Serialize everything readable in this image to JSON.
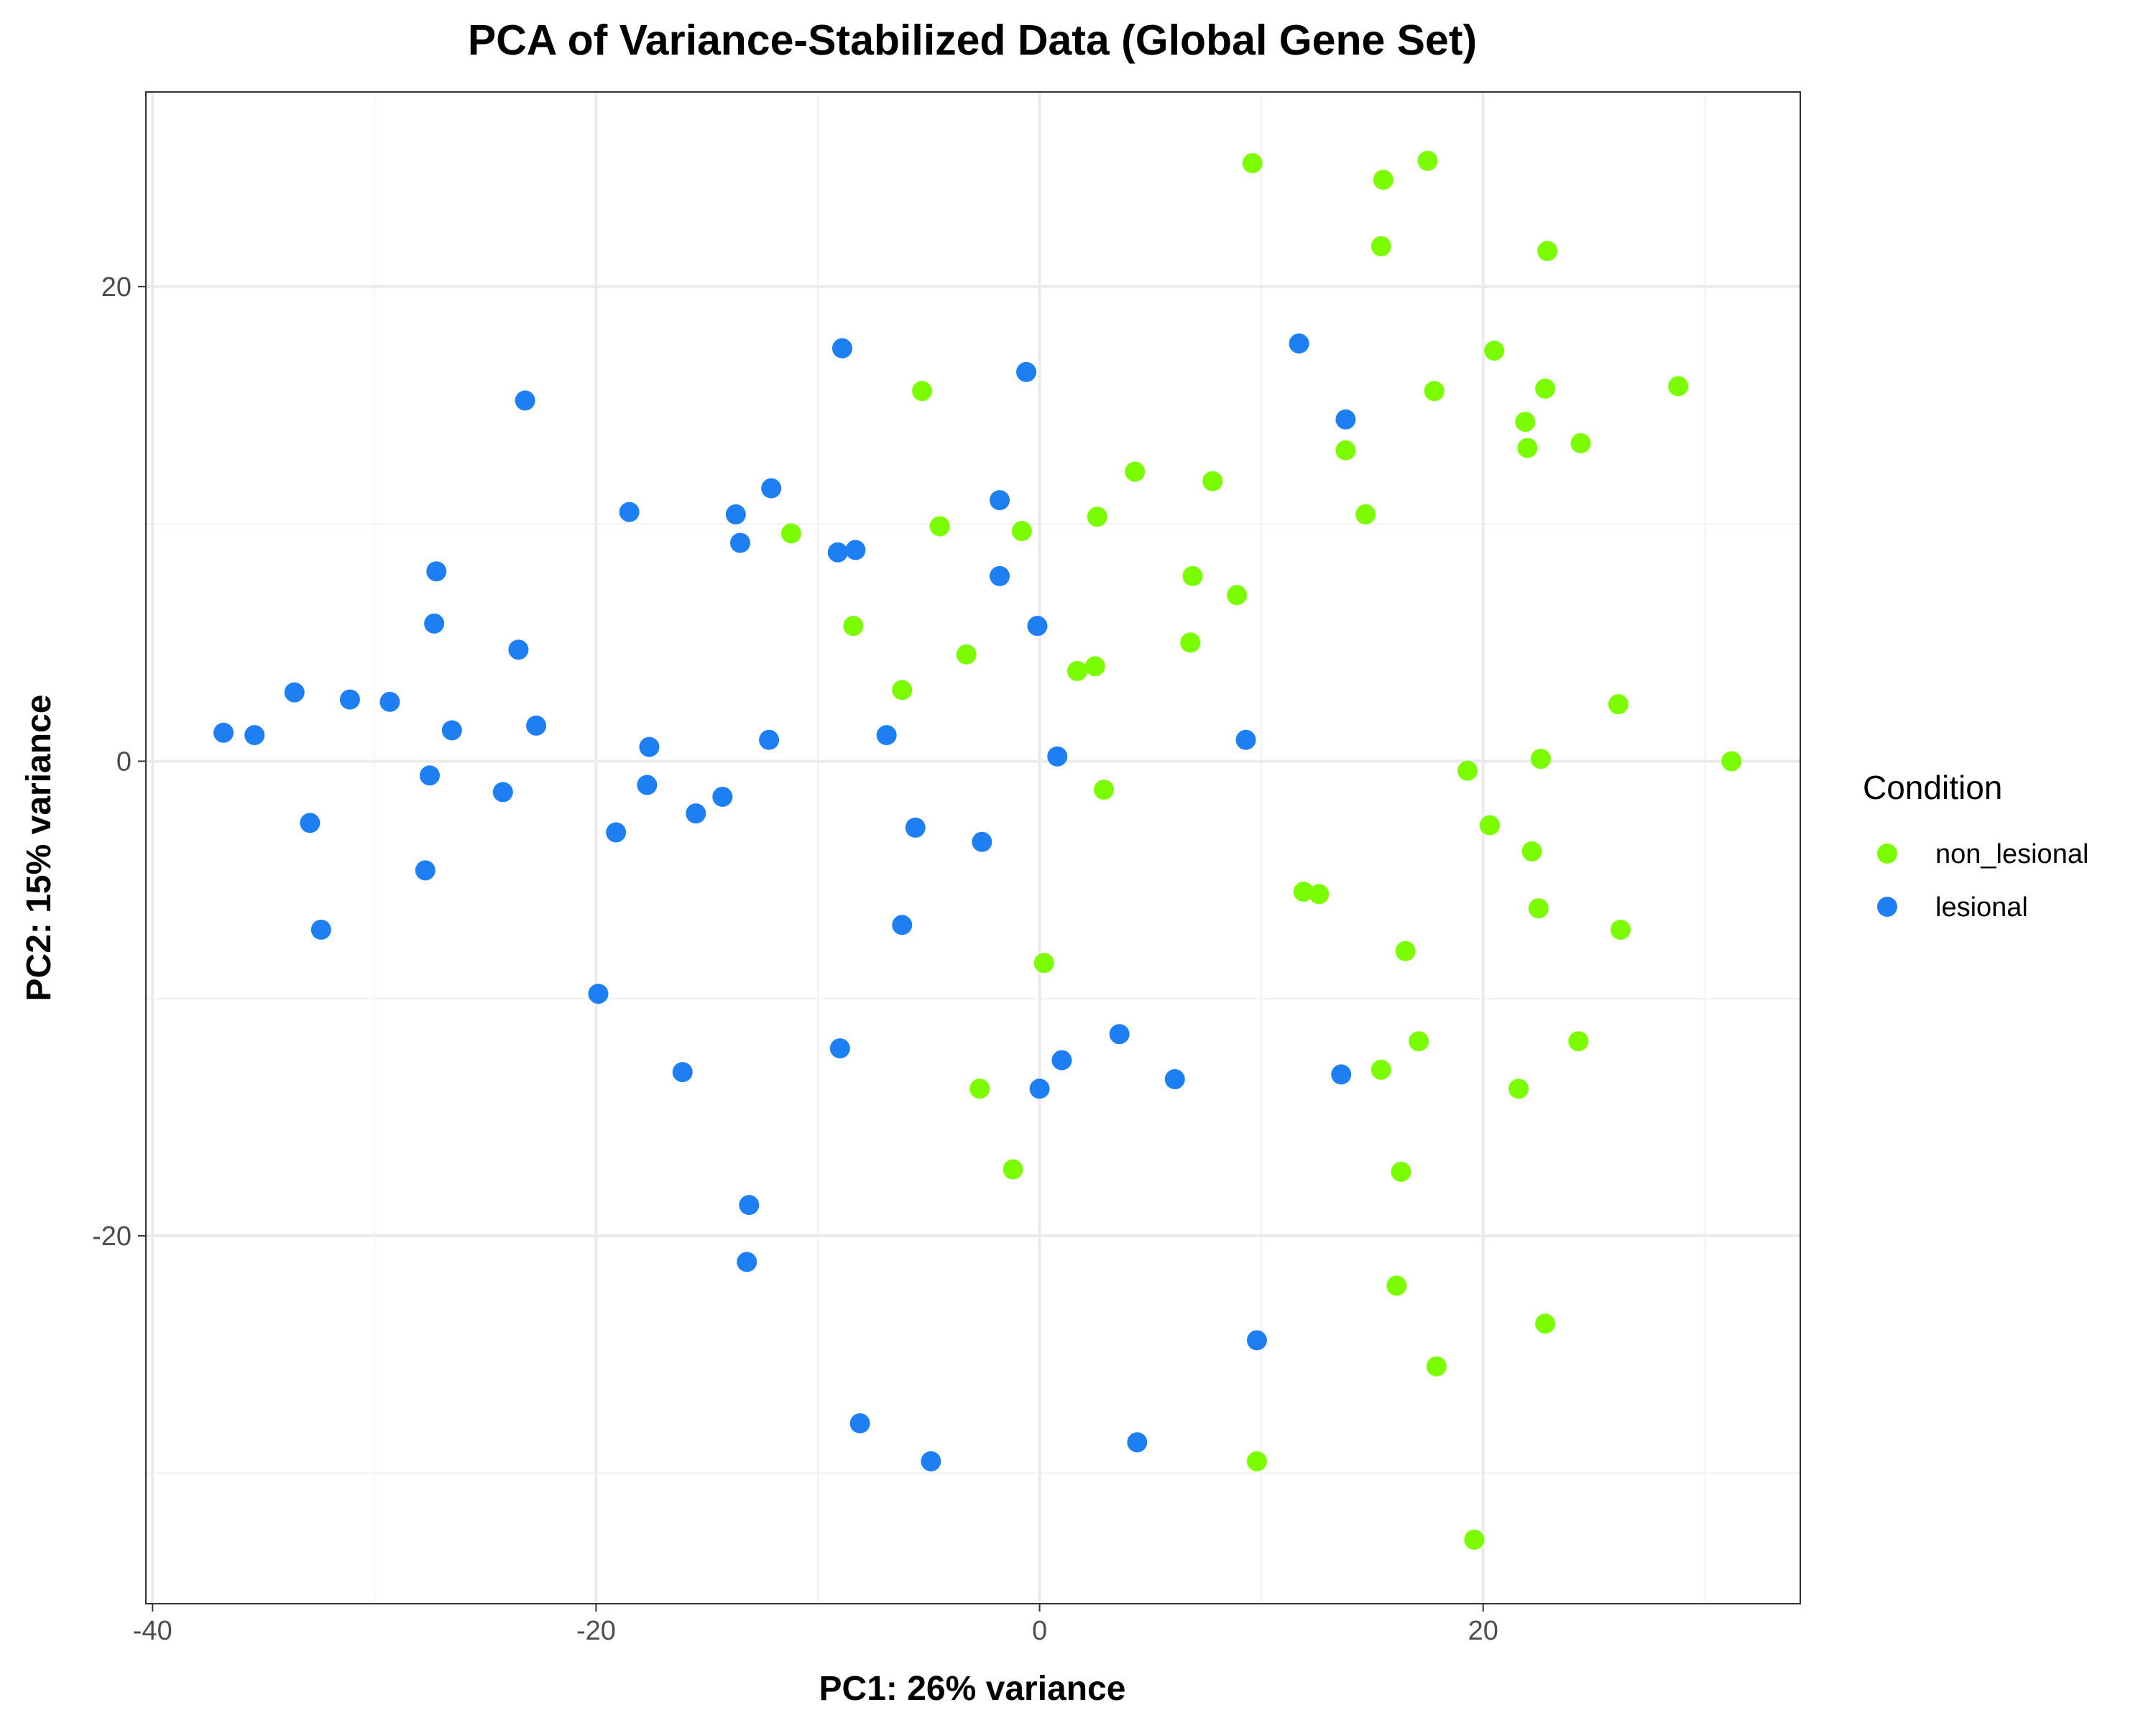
{
  "chart_data": {
    "type": "scatter",
    "title": "PCA of Variance-Stabilized Data (Global Gene Set)",
    "xlabel": "PC1: 26% variance",
    "ylabel": "PC2: 15% variance",
    "xlim": [
      -40.3,
      34.3
    ],
    "ylim": [
      -35.5,
      28.2
    ],
    "xticks": [
      -40,
      -20,
      0,
      20
    ],
    "yticks": [
      -20,
      0,
      20
    ],
    "xtick_labels": [
      "-40",
      "-20",
      "0",
      "20"
    ],
    "ytick_labels": [
      "-20",
      "0",
      "20"
    ],
    "grid": true,
    "legend_placement": "right",
    "legend_title": "Condition",
    "series": [
      {
        "name": "non_lesional",
        "color": "#7CFC00",
        "points": [
          [
            9.6,
            25.2
          ],
          [
            15.5,
            24.5
          ],
          [
            17.5,
            25.3
          ],
          [
            15.4,
            21.7
          ],
          [
            22.9,
            21.5
          ],
          [
            20.5,
            17.3
          ],
          [
            28.8,
            15.8
          ],
          [
            17.8,
            15.6
          ],
          [
            22.8,
            15.7
          ],
          [
            21.9,
            14.3
          ],
          [
            22.0,
            13.2
          ],
          [
            24.4,
            13.4
          ],
          [
            13.8,
            13.1
          ],
          [
            -5.3,
            15.6
          ],
          [
            4.3,
            12.2
          ],
          [
            7.8,
            11.8
          ],
          [
            14.7,
            10.4
          ],
          [
            2.6,
            10.3
          ],
          [
            -4.5,
            9.9
          ],
          [
            -11.2,
            9.6
          ],
          [
            -0.8,
            9.7
          ],
          [
            6.9,
            7.8
          ],
          [
            8.9,
            7.0
          ],
          [
            -8.4,
            5.7
          ],
          [
            6.8,
            5.0
          ],
          [
            -3.3,
            4.5
          ],
          [
            2.5,
            4.0
          ],
          [
            1.7,
            3.8
          ],
          [
            -6.2,
            3.0
          ],
          [
            26.1,
            2.4
          ],
          [
            22.6,
            0.1
          ],
          [
            31.2,
            0.0
          ],
          [
            19.3,
            -0.4
          ],
          [
            2.9,
            -1.2
          ],
          [
            20.3,
            -2.7
          ],
          [
            22.2,
            -3.8
          ],
          [
            11.9,
            -5.5
          ],
          [
            12.6,
            -5.6
          ],
          [
            22.5,
            -6.2
          ],
          [
            26.2,
            -7.1
          ],
          [
            16.5,
            -8.0
          ],
          [
            0.2,
            -8.5
          ],
          [
            24.3,
            -11.8
          ],
          [
            17.1,
            -11.8
          ],
          [
            15.4,
            -13.0
          ],
          [
            21.6,
            -13.8
          ],
          [
            -2.7,
            -13.8
          ],
          [
            -1.2,
            -17.2
          ],
          [
            16.3,
            -17.3
          ],
          [
            16.1,
            -22.1
          ],
          [
            22.8,
            -23.7
          ],
          [
            17.9,
            -25.5
          ],
          [
            9.8,
            -29.5
          ],
          [
            19.6,
            -32.8
          ]
        ]
      },
      {
        "name": "lesional",
        "color": "#1E7FF3",
        "points": [
          [
            11.7,
            17.6
          ],
          [
            -8.9,
            17.4
          ],
          [
            -0.6,
            16.4
          ],
          [
            13.8,
            14.4
          ],
          [
            -23.2,
            15.2
          ],
          [
            -12.1,
            11.5
          ],
          [
            -1.8,
            11.0
          ],
          [
            -18.5,
            10.5
          ],
          [
            -13.7,
            10.4
          ],
          [
            -13.5,
            9.2
          ],
          [
            -9.1,
            8.8
          ],
          [
            -8.3,
            8.9
          ],
          [
            -1.8,
            7.8
          ],
          [
            -27.2,
            8.0
          ],
          [
            -27.3,
            5.8
          ],
          [
            -0.1,
            5.7
          ],
          [
            -23.5,
            4.7
          ],
          [
            -33.6,
            2.9
          ],
          [
            -31.1,
            2.6
          ],
          [
            -29.3,
            2.5
          ],
          [
            -36.8,
            1.2
          ],
          [
            -35.4,
            1.1
          ],
          [
            -26.5,
            1.3
          ],
          [
            -22.7,
            1.5
          ],
          [
            -12.2,
            0.9
          ],
          [
            -6.9,
            1.1
          ],
          [
            9.3,
            0.9
          ],
          [
            -17.6,
            0.6
          ],
          [
            0.8,
            0.2
          ],
          [
            -27.5,
            -0.6
          ],
          [
            -17.7,
            -1.0
          ],
          [
            -24.2,
            -1.3
          ],
          [
            -14.3,
            -1.5
          ],
          [
            -15.5,
            -2.2
          ],
          [
            -32.9,
            -2.6
          ],
          [
            -19.1,
            -3.0
          ],
          [
            -5.6,
            -2.8
          ],
          [
            -2.6,
            -3.4
          ],
          [
            -27.7,
            -4.6
          ],
          [
            -6.2,
            -6.9
          ],
          [
            -32.4,
            -7.1
          ],
          [
            -19.9,
            -9.8
          ],
          [
            3.6,
            -11.5
          ],
          [
            -9.0,
            -12.1
          ],
          [
            1.0,
            -12.6
          ],
          [
            -16.1,
            -13.1
          ],
          [
            6.1,
            -13.4
          ],
          [
            13.6,
            -13.2
          ],
          [
            0.0,
            -13.8
          ],
          [
            -13.1,
            -18.7
          ],
          [
            -13.2,
            -21.1
          ],
          [
            9.8,
            -24.4
          ],
          [
            -8.1,
            -27.9
          ],
          [
            -4.9,
            -29.5
          ],
          [
            4.4,
            -28.7
          ]
        ]
      }
    ]
  }
}
